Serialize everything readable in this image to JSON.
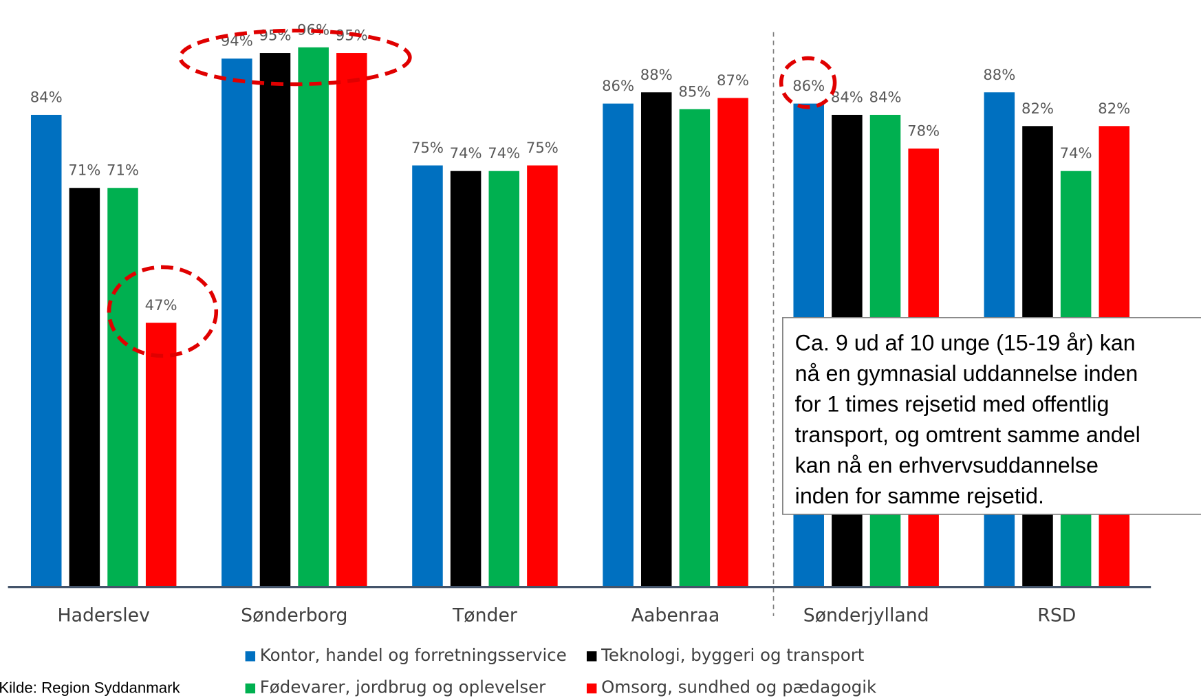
{
  "chart_data": {
    "type": "bar",
    "categories": [
      "Haderslev",
      "Sønderborg",
      "Tønder",
      "Aabenraa",
      "Sønderjylland",
      "RSD"
    ],
    "series": [
      {
        "name": "Kontor, handel og forretningsservice",
        "color": "#0070c0",
        "values": [
          84,
          94,
          75,
          86,
          86,
          88
        ],
        "value_labels": [
          "84%",
          "94%",
          "75%",
          "86%",
          "86%",
          "88%"
        ]
      },
      {
        "name": "Teknologi, byggeri og transport",
        "color": "#000000",
        "values": [
          71,
          95,
          74,
          88,
          84,
          82
        ],
        "value_labels": [
          "71%",
          "95%",
          "74%",
          "88%",
          "84%",
          "82%"
        ]
      },
      {
        "name": "Fødevarer, jordbrug og oplevelser",
        "color": "#00b050",
        "values": [
          71,
          96,
          74,
          85,
          84,
          74
        ],
        "value_labels": [
          "71%",
          "96%",
          "74%",
          "85%",
          "84%",
          "74%"
        ]
      },
      {
        "name": "Omsorg, sundhed og pædagogik",
        "color": "#ff0000",
        "values": [
          47,
          95,
          75,
          87,
          78,
          82
        ],
        "value_labels": [
          "47%",
          "95%",
          "75%",
          "87%",
          "78%",
          "82%"
        ]
      }
    ],
    "ylim": [
      0,
      100
    ],
    "annotation": [
      "Ca. 9 ud af 10 unge (15-19 år) kan",
      "nå en gymnasial uddannelse inden",
      "for 1 times rejsetid med offentlig",
      "transport, og omtrent samme andel",
      "kan nå en erhvervsuddannelse",
      "inden for samme rejsetid."
    ],
    "source": "Kilde: Region Syddanmark"
  }
}
